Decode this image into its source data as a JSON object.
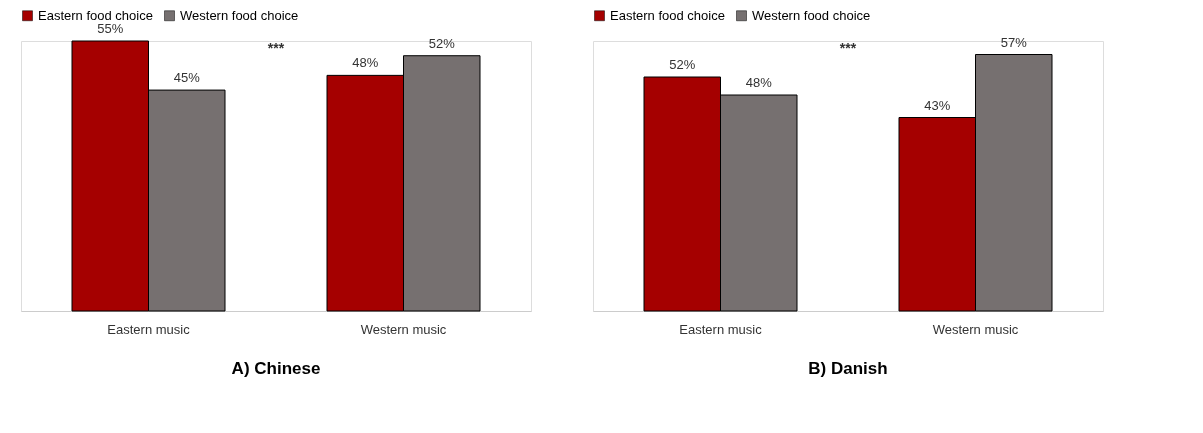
{
  "chart_data": [
    {
      "type": "bar",
      "title": "A) Chinese",
      "categories": [
        "Eastern music",
        "Western music"
      ],
      "series": [
        {
          "name": "Eastern food choice",
          "color": "#a50000",
          "values": [
            55,
            48
          ],
          "value_labels": [
            "55%",
            "48%"
          ]
        },
        {
          "name": "Western food choice",
          "color": "#767070",
          "values": [
            45,
            52
          ],
          "value_labels": [
            "45%",
            "52%"
          ]
        }
      ],
      "annotations": [
        "***"
      ],
      "legend": "top",
      "tick_labels": "x",
      "grid": false
    },
    {
      "type": "bar",
      "title": "B) Danish",
      "categories": [
        "Eastern music",
        "Western music"
      ],
      "series": [
        {
          "name": "Eastern food choice",
          "color": "#a50000",
          "values": [
            52,
            43
          ],
          "value_labels": [
            "52%",
            "43%"
          ]
        },
        {
          "name": "Western food choice",
          "color": "#767070",
          "values": [
            48,
            57
          ],
          "value_labels": [
            "48%",
            "57%"
          ]
        }
      ],
      "annotations": [
        "***"
      ],
      "legend": "top",
      "tick_labels": "x",
      "grid": false
    }
  ]
}
